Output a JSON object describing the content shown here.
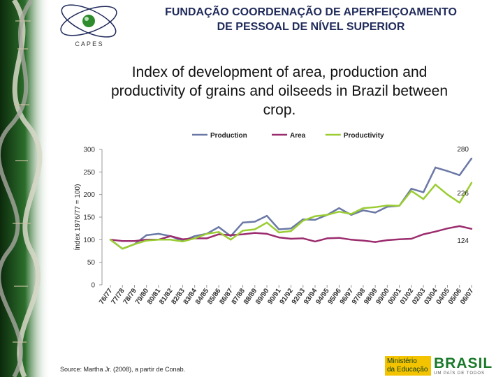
{
  "header": {
    "title_line1": "FUNDAÇÃO COORDENAÇÃO DE APERFEIÇOAMENTO",
    "title_line2": "DE PESSOAL DE NÍVEL SUPERIOR",
    "logo_text": "C A P E S"
  },
  "slide": {
    "title": "Index of development of area, production and productivity of grains and oilseeds in Brazil between crop."
  },
  "footer": {
    "source": "Source: Martha Jr. (2008), a partir de Conab.",
    "ministry_line1": "Ministério",
    "ministry_line2": "da Educação",
    "brasil_logo_text": "BRASIL",
    "brasil_tagline": "UM PAÍS DE TODOS"
  },
  "colors": {
    "production": "#6b78a6",
    "area": "#9b2c6e",
    "productivity": "#9acd32",
    "header_text": "#1f2a5a",
    "logo_green": "#2e8b2e"
  },
  "chart_data": {
    "type": "line",
    "title": "",
    "xlabel": "",
    "ylabel": "Índex 1976/77 = 100)",
    "ylim": [
      0,
      300
    ],
    "yticks": [
      0,
      50,
      100,
      150,
      200,
      250,
      300
    ],
    "legend_position": "top",
    "categories": [
      "76/77",
      "77/78",
      "78/79",
      "79/80",
      "80/81",
      "81/82",
      "82/83",
      "83/84",
      "84/85",
      "85/86",
      "86/87",
      "87/88",
      "88/89",
      "89/90",
      "90/91",
      "91/92",
      "92/93",
      "93/94",
      "94/95",
      "95/96",
      "96/97",
      "97/98",
      "98/99",
      "99/00",
      "00/01",
      "01/02",
      "02/03",
      "03/04",
      "04/05",
      "05/06",
      "06/07"
    ],
    "series": [
      {
        "name": "Production",
        "color_key": "production",
        "values": [
          100,
          80,
          90,
          110,
          113,
          108,
          97,
          108,
          113,
          128,
          108,
          138,
          140,
          153,
          123,
          125,
          145,
          144,
          155,
          170,
          155,
          165,
          160,
          173,
          175,
          213,
          205,
          260,
          252,
          243,
          280
        ]
      },
      {
        "name": "Area",
        "color_key": "area",
        "values": [
          100,
          97,
          97,
          100,
          100,
          108,
          101,
          103,
          103,
          112,
          110,
          112,
          115,
          113,
          105,
          102,
          103,
          96,
          103,
          104,
          100,
          98,
          95,
          99,
          101,
          102,
          112,
          118,
          125,
          130,
          124
        ]
      },
      {
        "name": "Productivity",
        "color_key": "productivity",
        "values": [
          100,
          80,
          90,
          98,
          100,
          100,
          96,
          103,
          113,
          117,
          100,
          120,
          123,
          138,
          116,
          119,
          142,
          152,
          155,
          162,
          157,
          170,
          172,
          176,
          175,
          208,
          190,
          222,
          200,
          182,
          226
        ]
      }
    ],
    "end_labels": [
      {
        "series": "Production",
        "text": "280"
      },
      {
        "series": "Productivity",
        "text": "226"
      },
      {
        "series": "Area",
        "text": "124"
      }
    ]
  }
}
